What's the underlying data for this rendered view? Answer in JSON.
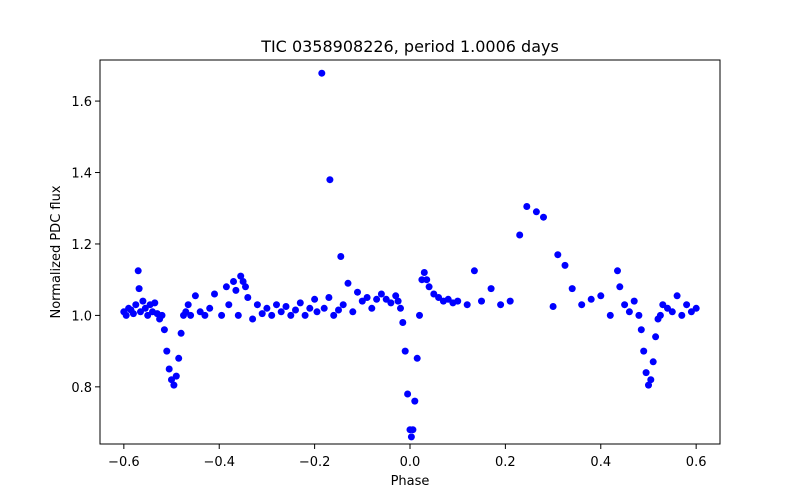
{
  "chart_data": {
    "type": "scatter",
    "title": "TIC 0358908226, period 1.0006 days",
    "xlabel": "Phase",
    "ylabel": "Normalized PDC flux",
    "xlim": [
      -0.65,
      0.65
    ],
    "ylim": [
      0.64,
      1.715
    ],
    "xticks": [
      -0.6,
      -0.4,
      -0.2,
      0.0,
      0.2,
      0.4,
      0.6
    ],
    "xtick_labels": [
      "−0.6",
      "−0.4",
      "−0.2",
      "0.0",
      "0.2",
      "0.4",
      "0.6"
    ],
    "yticks": [
      0.8,
      1.0,
      1.2,
      1.4,
      1.6
    ],
    "ytick_labels": [
      "0.8",
      "1.0",
      "1.2",
      "1.4",
      "1.6"
    ],
    "grid": false,
    "marker_color": "#0000ff",
    "series": [
      {
        "points": [
          [
            -0.6,
            1.01
          ],
          [
            -0.595,
            1.0
          ],
          [
            -0.59,
            1.02
          ],
          [
            -0.585,
            1.015
          ],
          [
            -0.58,
            1.005
          ],
          [
            -0.575,
            1.03
          ],
          [
            -0.57,
            1.125
          ],
          [
            -0.568,
            1.075
          ],
          [
            -0.565,
            1.01
          ],
          [
            -0.56,
            1.04
          ],
          [
            -0.555,
            1.02
          ],
          [
            -0.55,
            1.0
          ],
          [
            -0.545,
            1.03
          ],
          [
            -0.54,
            1.01
          ],
          [
            -0.535,
            1.035
          ],
          [
            -0.53,
            1.005
          ],
          [
            -0.525,
            0.99
          ],
          [
            -0.52,
            1.0
          ],
          [
            -0.515,
            0.96
          ],
          [
            -0.51,
            0.9
          ],
          [
            -0.505,
            0.85
          ],
          [
            -0.5,
            0.82
          ],
          [
            -0.495,
            0.805
          ],
          [
            -0.49,
            0.83
          ],
          [
            -0.485,
            0.88
          ],
          [
            -0.48,
            0.95
          ],
          [
            -0.475,
            1.0
          ],
          [
            -0.47,
            1.01
          ],
          [
            -0.465,
            1.03
          ],
          [
            -0.46,
            1.0
          ],
          [
            -0.45,
            1.055
          ],
          [
            -0.44,
            1.01
          ],
          [
            -0.43,
            1.0
          ],
          [
            -0.42,
            1.02
          ],
          [
            -0.41,
            1.06
          ],
          [
            -0.395,
            1.0
          ],
          [
            -0.385,
            1.08
          ],
          [
            -0.38,
            1.03
          ],
          [
            -0.37,
            1.095
          ],
          [
            -0.365,
            1.07
          ],
          [
            -0.36,
            1.0
          ],
          [
            -0.355,
            1.11
          ],
          [
            -0.35,
            1.095
          ],
          [
            -0.345,
            1.08
          ],
          [
            -0.34,
            1.05
          ],
          [
            -0.33,
            0.99
          ],
          [
            -0.32,
            1.03
          ],
          [
            -0.31,
            1.005
          ],
          [
            -0.3,
            1.02
          ],
          [
            -0.29,
            1.0
          ],
          [
            -0.28,
            1.03
          ],
          [
            -0.27,
            1.01
          ],
          [
            -0.26,
            1.025
          ],
          [
            -0.25,
            1.0
          ],
          [
            -0.24,
            1.015
          ],
          [
            -0.23,
            1.035
          ],
          [
            -0.22,
            1.0
          ],
          [
            -0.21,
            1.02
          ],
          [
            -0.2,
            1.045
          ],
          [
            -0.195,
            1.01
          ],
          [
            -0.185,
            1.678
          ],
          [
            -0.18,
            1.02
          ],
          [
            -0.17,
            1.05
          ],
          [
            -0.168,
            1.38
          ],
          [
            -0.16,
            1.0
          ],
          [
            -0.15,
            1.015
          ],
          [
            -0.145,
            1.165
          ],
          [
            -0.14,
            1.03
          ],
          [
            -0.13,
            1.09
          ],
          [
            -0.12,
            1.01
          ],
          [
            -0.11,
            1.065
          ],
          [
            -0.1,
            1.04
          ],
          [
            -0.09,
            1.05
          ],
          [
            -0.08,
            1.02
          ],
          [
            -0.07,
            1.045
          ],
          [
            -0.06,
            1.06
          ],
          [
            -0.05,
            1.045
          ],
          [
            -0.04,
            1.035
          ],
          [
            -0.03,
            1.055
          ],
          [
            -0.025,
            1.04
          ],
          [
            -0.02,
            1.02
          ],
          [
            -0.015,
            0.98
          ],
          [
            -0.01,
            0.9
          ],
          [
            -0.005,
            0.78
          ],
          [
            0.0,
            0.68
          ],
          [
            0.003,
            0.66
          ],
          [
            0.006,
            0.68
          ],
          [
            0.01,
            0.76
          ],
          [
            0.015,
            0.88
          ],
          [
            0.02,
            1.0
          ],
          [
            0.025,
            1.1
          ],
          [
            0.03,
            1.12
          ],
          [
            0.035,
            1.1
          ],
          [
            0.04,
            1.08
          ],
          [
            0.05,
            1.06
          ],
          [
            0.06,
            1.05
          ],
          [
            0.07,
            1.04
          ],
          [
            0.08,
            1.045
          ],
          [
            0.09,
            1.035
          ],
          [
            0.1,
            1.04
          ],
          [
            0.12,
            1.03
          ],
          [
            0.135,
            1.125
          ],
          [
            0.15,
            1.04
          ],
          [
            0.17,
            1.075
          ],
          [
            0.19,
            1.03
          ],
          [
            0.21,
            1.04
          ],
          [
            0.23,
            1.225
          ],
          [
            0.245,
            1.305
          ],
          [
            0.265,
            1.29
          ],
          [
            0.28,
            1.275
          ],
          [
            0.3,
            1.025
          ],
          [
            0.31,
            1.17
          ],
          [
            0.325,
            1.14
          ],
          [
            0.34,
            1.075
          ],
          [
            0.36,
            1.03
          ],
          [
            0.38,
            1.045
          ],
          [
            0.4,
            1.055
          ],
          [
            0.42,
            1.0
          ],
          [
            0.435,
            1.125
          ],
          [
            0.44,
            1.08
          ],
          [
            0.45,
            1.03
          ],
          [
            0.46,
            1.01
          ],
          [
            0.47,
            1.04
          ],
          [
            0.48,
            1.0
          ],
          [
            0.485,
            0.96
          ],
          [
            0.49,
            0.9
          ],
          [
            0.495,
            0.84
          ],
          [
            0.5,
            0.805
          ],
          [
            0.505,
            0.82
          ],
          [
            0.51,
            0.87
          ],
          [
            0.515,
            0.94
          ],
          [
            0.52,
            0.99
          ],
          [
            0.525,
            1.0
          ],
          [
            0.53,
            1.03
          ],
          [
            0.54,
            1.02
          ],
          [
            0.55,
            1.01
          ],
          [
            0.56,
            1.055
          ],
          [
            0.57,
            1.0
          ],
          [
            0.58,
            1.03
          ],
          [
            0.59,
            1.01
          ],
          [
            0.6,
            1.02
          ]
        ]
      }
    ]
  }
}
